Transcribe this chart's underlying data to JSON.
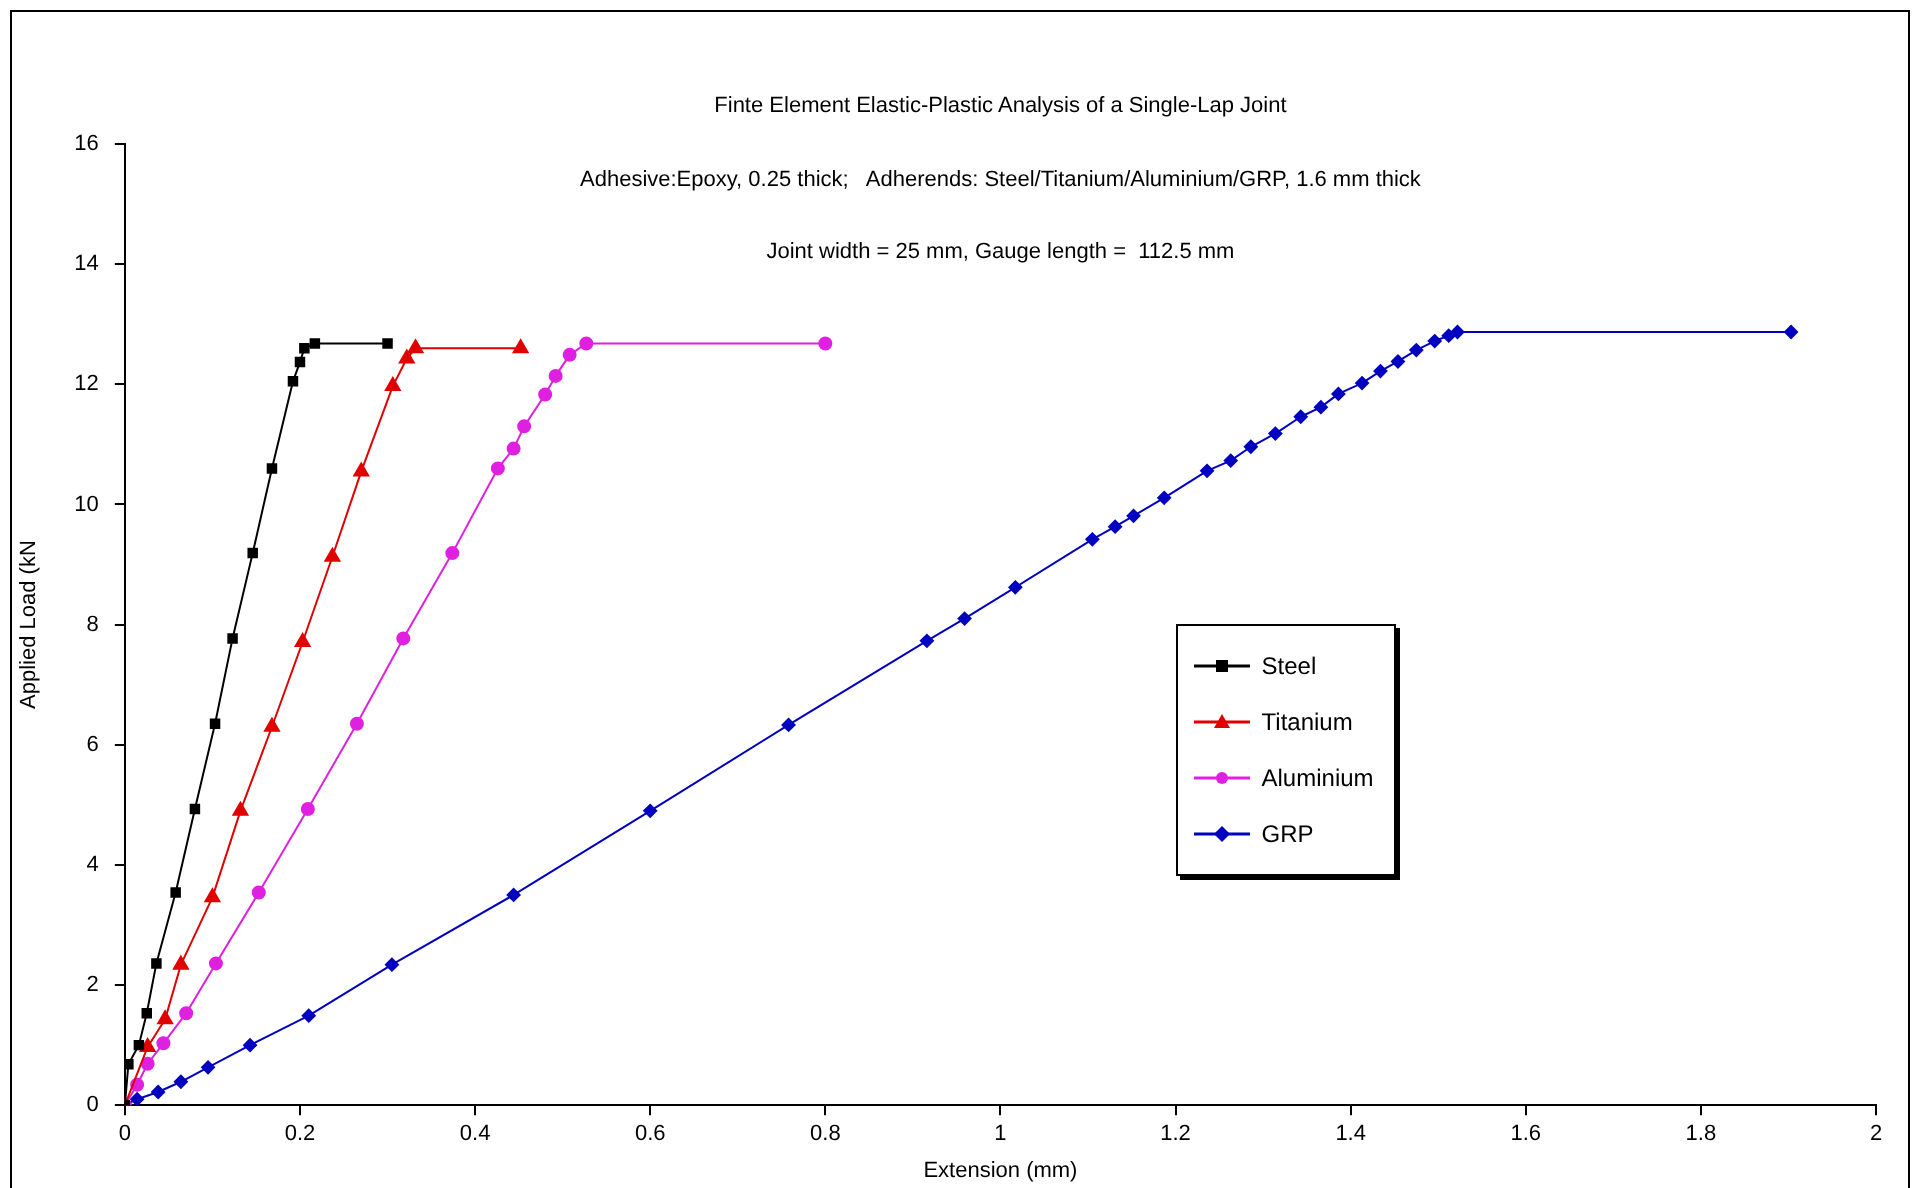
{
  "chart_data": {
    "type": "line",
    "title": "Finte Element Elastic-Plastic Analysis of a Single-Lap Joint",
    "subtitle": "Adhesive:Epoxy, 0.25 thick;   Adherends: Steel/Titanium/Aluminium/GRP, 1.6 mm thick",
    "annotations": [
      "Joint width = 25 mm, Gauge length =  112.5 mm"
    ],
    "xlabel": "Extension (mm)",
    "ylabel": "Applied Load (kN",
    "xlim": [
      0,
      2
    ],
    "ylim": [
      0,
      16
    ],
    "xticks": [
      0,
      0.2,
      0.4,
      0.6,
      0.8,
      1,
      1.2,
      1.4,
      1.6,
      1.8,
      2
    ],
    "yticks": [
      0,
      2,
      4,
      6,
      8,
      10,
      12,
      14,
      16
    ],
    "grid": false,
    "legend": "right",
    "line_style": "solid",
    "series": [
      {
        "name": "Steel",
        "color": "#000000",
        "marker": "square",
        "x": [
          0,
          0.004,
          0.016,
          0.025,
          0.036,
          0.058,
          0.08,
          0.103,
          0.123,
          0.146,
          0.168,
          0.192,
          0.2,
          0.205,
          0.217,
          0.3
        ],
        "values": [
          0,
          0.68,
          1.0,
          1.53,
          2.36,
          3.54,
          4.93,
          6.35,
          7.77,
          9.19,
          10.6,
          12.05,
          12.37,
          12.6,
          12.68,
          12.68
        ]
      },
      {
        "name": "Titanium",
        "color": "#e00000",
        "marker": "triangle",
        "x": [
          0,
          0.026,
          0.046,
          0.064,
          0.1,
          0.132,
          0.168,
          0.203,
          0.237,
          0.27,
          0.306,
          0.322,
          0.332,
          0.452
        ],
        "values": [
          0,
          0.97,
          1.43,
          2.34,
          3.46,
          4.9,
          6.3,
          7.71,
          9.13,
          10.55,
          11.97,
          12.43,
          12.6,
          12.6
        ]
      },
      {
        "name": "Aluminium",
        "color": "#e020e0",
        "marker": "circle",
        "x": [
          0,
          0.014,
          0.026,
          0.044,
          0.07,
          0.104,
          0.153,
          0.209,
          0.265,
          0.318,
          0.374,
          0.426,
          0.444,
          0.456,
          0.48,
          0.492,
          0.508,
          0.527,
          0.8
        ],
        "values": [
          0,
          0.34,
          0.69,
          1.03,
          1.53,
          2.36,
          3.54,
          4.93,
          6.35,
          7.77,
          9.19,
          10.6,
          10.93,
          11.3,
          11.83,
          12.14,
          12.49,
          12.68,
          12.68
        ]
      },
      {
        "name": "GRP",
        "color": "#0000c0",
        "marker": "diamond",
        "x": [
          0,
          0.014,
          0.038,
          0.064,
          0.095,
          0.143,
          0.21,
          0.305,
          0.444,
          0.6,
          0.758,
          0.916,
          0.959,
          1.017,
          1.105,
          1.131,
          1.152,
          1.187,
          1.236,
          1.263,
          1.286,
          1.314,
          1.343,
          1.366,
          1.386,
          1.413,
          1.434,
          1.454,
          1.475,
          1.496,
          1.512,
          1.522,
          1.903
        ],
        "values": [
          0,
          0.1,
          0.22,
          0.39,
          0.63,
          1.0,
          1.49,
          2.34,
          3.5,
          4.9,
          6.33,
          7.73,
          8.1,
          8.62,
          9.42,
          9.63,
          9.81,
          10.11,
          10.56,
          10.73,
          10.96,
          11.18,
          11.46,
          11.62,
          11.84,
          12.02,
          12.22,
          12.38,
          12.57,
          12.72,
          12.81,
          12.87,
          12.87
        ]
      }
    ]
  }
}
